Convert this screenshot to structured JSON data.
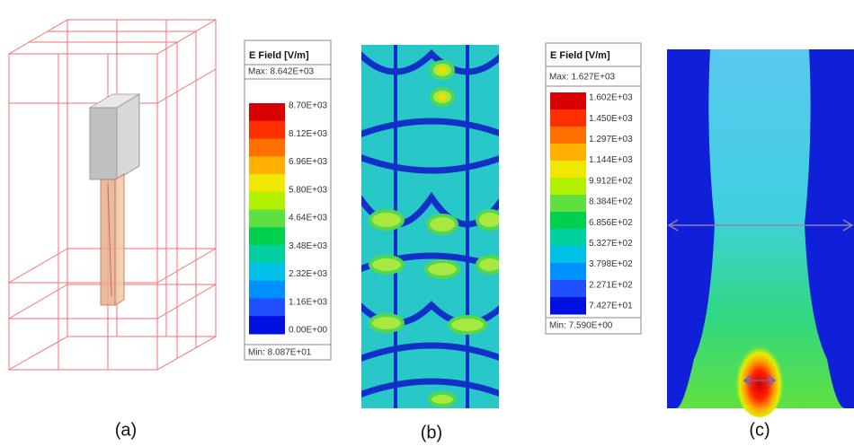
{
  "panels": [
    {
      "label": "(a)"
    },
    {
      "label": "(b)",
      "legend": {
        "title": "E Field [V/m]",
        "max": "Max: 8.642E+03",
        "min": "Min: 8.087E+01",
        "ticks": [
          "8.70E+03",
          "8.12E+03",
          "6.96E+03",
          "5.80E+03",
          "4.64E+03",
          "3.48E+03",
          "2.32E+03",
          "1.16E+03",
          "0.00E+00"
        ]
      }
    },
    {
      "label": "(c)",
      "legend": {
        "title": "E Field [V/m]",
        "max": "Max: 1.627E+03",
        "min": "Min: 7.590E+00",
        "ticks": [
          "1.602E+03",
          "1.450E+03",
          "1.297E+03",
          "1.144E+03",
          "9.912E+02",
          "8.384E+02",
          "6.856E+02",
          "5.327E+02",
          "3.798E+02",
          "2.271E+02",
          "7.427E+01"
        ]
      }
    }
  ]
}
